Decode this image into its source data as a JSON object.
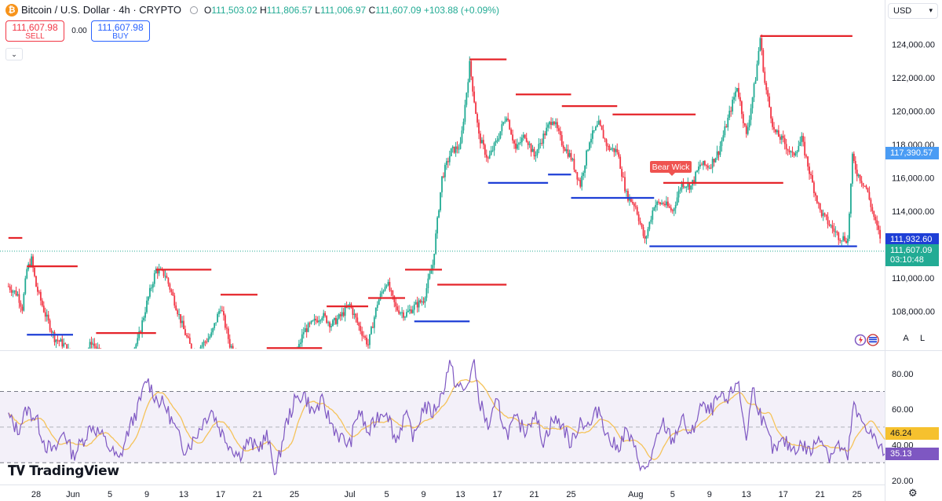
{
  "header": {
    "symbol": "Bitcoin / U.S. Dollar · 4h · CRYPTO",
    "icon_glyph": "₿",
    "ohlc": {
      "o_label": "O",
      "o_value": "111,503.02",
      "h_label": "H",
      "h_value": "111,806.57",
      "l_label": "L",
      "l_value": "111,006.97",
      "c_label": "C",
      "c_value": "111,607.09",
      "change": "+103.88 (+0.09%)"
    }
  },
  "trade": {
    "sell_price": "111,607.98",
    "sell_label": "SELL",
    "spread": "0.00",
    "buy_price": "111,607.98",
    "buy_label": "BUY"
  },
  "currency": "USD",
  "buttons": {
    "auto": "A",
    "log": "L"
  },
  "logo_text": "TradingView",
  "colors": {
    "up": "#22ab94",
    "down": "#f23645",
    "resistance": "#e5242a",
    "support": "#1e3fd6",
    "rsi_line": "#7e57c2",
    "rsi_ma": "#f5c35a",
    "rsi_band": "#7e57c2",
    "last_price": "#22ab94",
    "level_tag": "#1e3fd6",
    "info_tag": "#4a9cf4",
    "ma_tag": "#f6c12e",
    "rsi_tag": "#7e57c2"
  },
  "chart_data": [
    {
      "type": "candlestick",
      "title": "Bitcoin / U.S. Dollar · 4h · CRYPTO",
      "price_ticks": [
        108000,
        110000,
        112000,
        114000,
        116000,
        118000,
        120000,
        122000,
        124000
      ],
      "price_tick_labels": [
        "108,000.00",
        "110,000.00",
        "112,000.00",
        "114,000.00",
        "116,000.00",
        "118,000.00",
        "120,000.00",
        "122,000.00",
        "124,000.00"
      ],
      "x_ticks": [
        {
          "label": "28",
          "day": -4
        },
        {
          "label": "Jun",
          "day": 0
        },
        {
          "label": "5",
          "day": 4
        },
        {
          "label": "9",
          "day": 8
        },
        {
          "label": "13",
          "day": 12
        },
        {
          "label": "17",
          "day": 16
        },
        {
          "label": "21",
          "day": 20
        },
        {
          "label": "25",
          "day": 24
        },
        {
          "label": "Jul",
          "day": 30
        },
        {
          "label": "5",
          "day": 34
        },
        {
          "label": "9",
          "day": 38
        },
        {
          "label": "13",
          "day": 42
        },
        {
          "label": "17",
          "day": 46
        },
        {
          "label": "21",
          "day": 50
        },
        {
          "label": "25",
          "day": 54
        },
        {
          "label": "Aug",
          "day": 61
        },
        {
          "label": "5",
          "day": 65
        },
        {
          "label": "9",
          "day": 69
        },
        {
          "label": "13",
          "day": 73
        },
        {
          "label": "17",
          "day": 77
        },
        {
          "label": "21",
          "day": 81
        },
        {
          "label": "25",
          "day": 85
        }
      ],
      "price_path": [
        [
          -7,
          109500
        ],
        [
          -6,
          109000
        ],
        [
          -5.5,
          108200
        ],
        [
          -5,
          110500
        ],
        [
          -4.5,
          111100
        ],
        [
          -4,
          109500
        ],
        [
          -3,
          107800
        ],
        [
          -2,
          106400
        ],
        [
          -1,
          106000
        ],
        [
          0,
          105200
        ],
        [
          1,
          104800
        ],
        [
          2,
          106200
        ],
        [
          3,
          105400
        ],
        [
          4,
          105000
        ],
        [
          5,
          104600
        ],
        [
          6,
          105200
        ],
        [
          7,
          106200
        ],
        [
          8,
          108500
        ],
        [
          9,
          110500
        ],
        [
          10,
          110200
        ],
        [
          11,
          108600
        ],
        [
          12,
          106900
        ],
        [
          13,
          105500
        ],
        [
          14,
          106000
        ],
        [
          15,
          106600
        ],
        [
          16,
          108300
        ],
        [
          17,
          106000
        ],
        [
          18,
          105300
        ],
        [
          19,
          104400
        ],
        [
          20,
          103600
        ],
        [
          21,
          102600
        ],
        [
          22,
          101300
        ],
        [
          23,
          103300
        ],
        [
          24,
          105000
        ],
        [
          25,
          106800
        ],
        [
          26,
          107300
        ],
        [
          27,
          107800
        ],
        [
          28,
          107200
        ],
        [
          29,
          107700
        ],
        [
          30,
          108400
        ],
        [
          31,
          107100
        ],
        [
          32,
          106000
        ],
        [
          33,
          108500
        ],
        [
          34,
          109800
        ],
        [
          35,
          108200
        ],
        [
          36,
          107800
        ],
        [
          37,
          108300
        ],
        [
          38,
          108700
        ],
        [
          39,
          110800
        ],
        [
          40,
          116000
        ],
        [
          41,
          117600
        ],
        [
          42,
          117900
        ],
        [
          43,
          122800
        ],
        [
          44,
          118500
        ],
        [
          45,
          117100
        ],
        [
          46,
          118300
        ],
        [
          47,
          119800
        ],
        [
          48,
          117700
        ],
        [
          49,
          118600
        ],
        [
          50,
          117300
        ],
        [
          51,
          118500
        ],
        [
          52,
          119600
        ],
        [
          53,
          118100
        ],
        [
          54,
          117200
        ],
        [
          55,
          115600
        ],
        [
          56,
          118300
        ],
        [
          57,
          119200
        ],
        [
          58,
          117800
        ],
        [
          59,
          117600
        ],
        [
          60,
          115000
        ],
        [
          61,
          114300
        ],
        [
          62,
          112200
        ],
        [
          63,
          114400
        ],
        [
          64,
          114500
        ],
        [
          65,
          114000
        ],
        [
          66,
          115700
        ],
        [
          67,
          115500
        ],
        [
          68,
          116800
        ],
        [
          69,
          116700
        ],
        [
          70,
          117600
        ],
        [
          71,
          119500
        ],
        [
          72,
          121500
        ],
        [
          73,
          118500
        ],
        [
          74,
          122000
        ],
        [
          74.5,
          124400
        ],
        [
          75,
          121700
        ],
        [
          76,
          118800
        ],
        [
          77,
          118200
        ],
        [
          78,
          117300
        ],
        [
          79,
          118300
        ],
        [
          80,
          116000
        ],
        [
          81,
          114000
        ],
        [
          82,
          113200
        ],
        [
          83,
          112500
        ],
        [
          84,
          112300
        ],
        [
          84.5,
          117200
        ],
        [
          85,
          116300
        ],
        [
          86,
          115400
        ],
        [
          87,
          113300
        ],
        [
          88,
          111600
        ]
      ],
      "resistance_levels": [
        {
          "price": 112400,
          "from_day": -7,
          "to_day": -5.5
        },
        {
          "price": 110700,
          "from_day": -5,
          "to_day": 0.5
        },
        {
          "price": 106700,
          "from_day": 2.5,
          "to_day": 9
        },
        {
          "price": 110500,
          "from_day": 9,
          "to_day": 15
        },
        {
          "price": 109000,
          "from_day": 16,
          "to_day": 20
        },
        {
          "price": 105800,
          "from_day": 21,
          "to_day": 27
        },
        {
          "price": 108300,
          "from_day": 27.5,
          "to_day": 32
        },
        {
          "price": 108800,
          "from_day": 32,
          "to_day": 36
        },
        {
          "price": 110500,
          "from_day": 36,
          "to_day": 40
        },
        {
          "price": 109600,
          "from_day": 39.5,
          "to_day": 47
        },
        {
          "price": 123100,
          "from_day": 43,
          "to_day": 47
        },
        {
          "price": 121000,
          "from_day": 48,
          "to_day": 54
        },
        {
          "price": 120300,
          "from_day": 53,
          "to_day": 59
        },
        {
          "price": 119800,
          "from_day": 58.5,
          "to_day": 67.5
        },
        {
          "price": 115700,
          "from_day": 64,
          "to_day": 77
        },
        {
          "price": 124500,
          "from_day": 74.5,
          "to_day": 84.5
        }
      ],
      "support_levels": [
        {
          "price": 106600,
          "from_day": -5,
          "to_day": 0
        },
        {
          "price": 107400,
          "from_day": 37,
          "to_day": 43
        },
        {
          "price": 115700,
          "from_day": 45,
          "to_day": 51.5
        },
        {
          "price": 116200,
          "from_day": 51.5,
          "to_day": 54
        },
        {
          "price": 114800,
          "from_day": 54,
          "to_day": 63
        },
        {
          "price": 111900,
          "from_day": 62.5,
          "to_day": 85
        }
      ],
      "annotation": "Bear Wick",
      "price_tags": {
        "info": "117,390.57",
        "level": "111,932.60",
        "last_price": "111,607.09",
        "countdown": "03:10:48"
      }
    },
    {
      "type": "line",
      "subtype": "RSI",
      "ylim": [
        20,
        90
      ],
      "y_ticks": [
        20,
        40,
        60,
        80
      ],
      "y_tick_labels": [
        "20.00",
        "40.00",
        "60.00",
        "80.00"
      ],
      "bands": {
        "upper": 70,
        "middle": 50,
        "lower": 30
      },
      "series": [
        {
          "value_tag": "35.13"
        },
        {
          "value_tag": "46.24"
        }
      ],
      "rsi_path": [
        [
          -7,
          56
        ],
        [
          -6,
          48
        ],
        [
          -5,
          60
        ],
        [
          -4,
          55
        ],
        [
          -3,
          40
        ],
        [
          -2,
          36
        ],
        [
          -1,
          48
        ],
        [
          0,
          34
        ],
        [
          1,
          42
        ],
        [
          2,
          51
        ],
        [
          3,
          46
        ],
        [
          4,
          38
        ],
        [
          5,
          31
        ],
        [
          6,
          48
        ],
        [
          7,
          60
        ],
        [
          8,
          77
        ],
        [
          9,
          66
        ],
        [
          10,
          62
        ],
        [
          11,
          50
        ],
        [
          12,
          38
        ],
        [
          13,
          42
        ],
        [
          14,
          52
        ],
        [
          15,
          60
        ],
        [
          16,
          48
        ],
        [
          17,
          40
        ],
        [
          18,
          34
        ],
        [
          19,
          42
        ],
        [
          20,
          38
        ],
        [
          21,
          45
        ],
        [
          22,
          24
        ],
        [
          23,
          50
        ],
        [
          24,
          64
        ],
        [
          25,
          69
        ],
        [
          26,
          58
        ],
        [
          27,
          64
        ],
        [
          28,
          52
        ],
        [
          29,
          44
        ],
        [
          30,
          40
        ],
        [
          31,
          60
        ],
        [
          32,
          46
        ],
        [
          33,
          56
        ],
        [
          34,
          60
        ],
        [
          35,
          42
        ],
        [
          36,
          57
        ],
        [
          37,
          44
        ],
        [
          38,
          62
        ],
        [
          39,
          58
        ],
        [
          40,
          68
        ],
        [
          40.8,
          86
        ],
        [
          41.5,
          74
        ],
        [
          42.5,
          70
        ],
        [
          43,
          78
        ],
        [
          43.5,
          87
        ],
        [
          44,
          66
        ],
        [
          45,
          50
        ],
        [
          46,
          64
        ],
        [
          47,
          46
        ],
        [
          48,
          54
        ],
        [
          49,
          48
        ],
        [
          50,
          58
        ],
        [
          51,
          42
        ],
        [
          52,
          54
        ],
        [
          53,
          52
        ],
        [
          54,
          40
        ],
        [
          55,
          54
        ],
        [
          56,
          50
        ],
        [
          57,
          61
        ],
        [
          58,
          44
        ],
        [
          59,
          38
        ],
        [
          60,
          48
        ],
        [
          61,
          36
        ],
        [
          62,
          24
        ],
        [
          63,
          38
        ],
        [
          64,
          52
        ],
        [
          65,
          42
        ],
        [
          66,
          55
        ],
        [
          67,
          44
        ],
        [
          68,
          62
        ],
        [
          69,
          58
        ],
        [
          70,
          66
        ],
        [
          71,
          64
        ],
        [
          72,
          77
        ],
        [
          73,
          44
        ],
        [
          73.7,
          72
        ],
        [
          74.5,
          58
        ],
        [
          75,
          50
        ],
        [
          76,
          36
        ],
        [
          77,
          42
        ],
        [
          78,
          38
        ],
        [
          79,
          40
        ],
        [
          80,
          36
        ],
        [
          81,
          46
        ],
        [
          82,
          34
        ],
        [
          83,
          40
        ],
        [
          84,
          32
        ],
        [
          84.6,
          63
        ],
        [
          85,
          56
        ],
        [
          86,
          51
        ],
        [
          87,
          42
        ],
        [
          88,
          35
        ]
      ]
    }
  ]
}
